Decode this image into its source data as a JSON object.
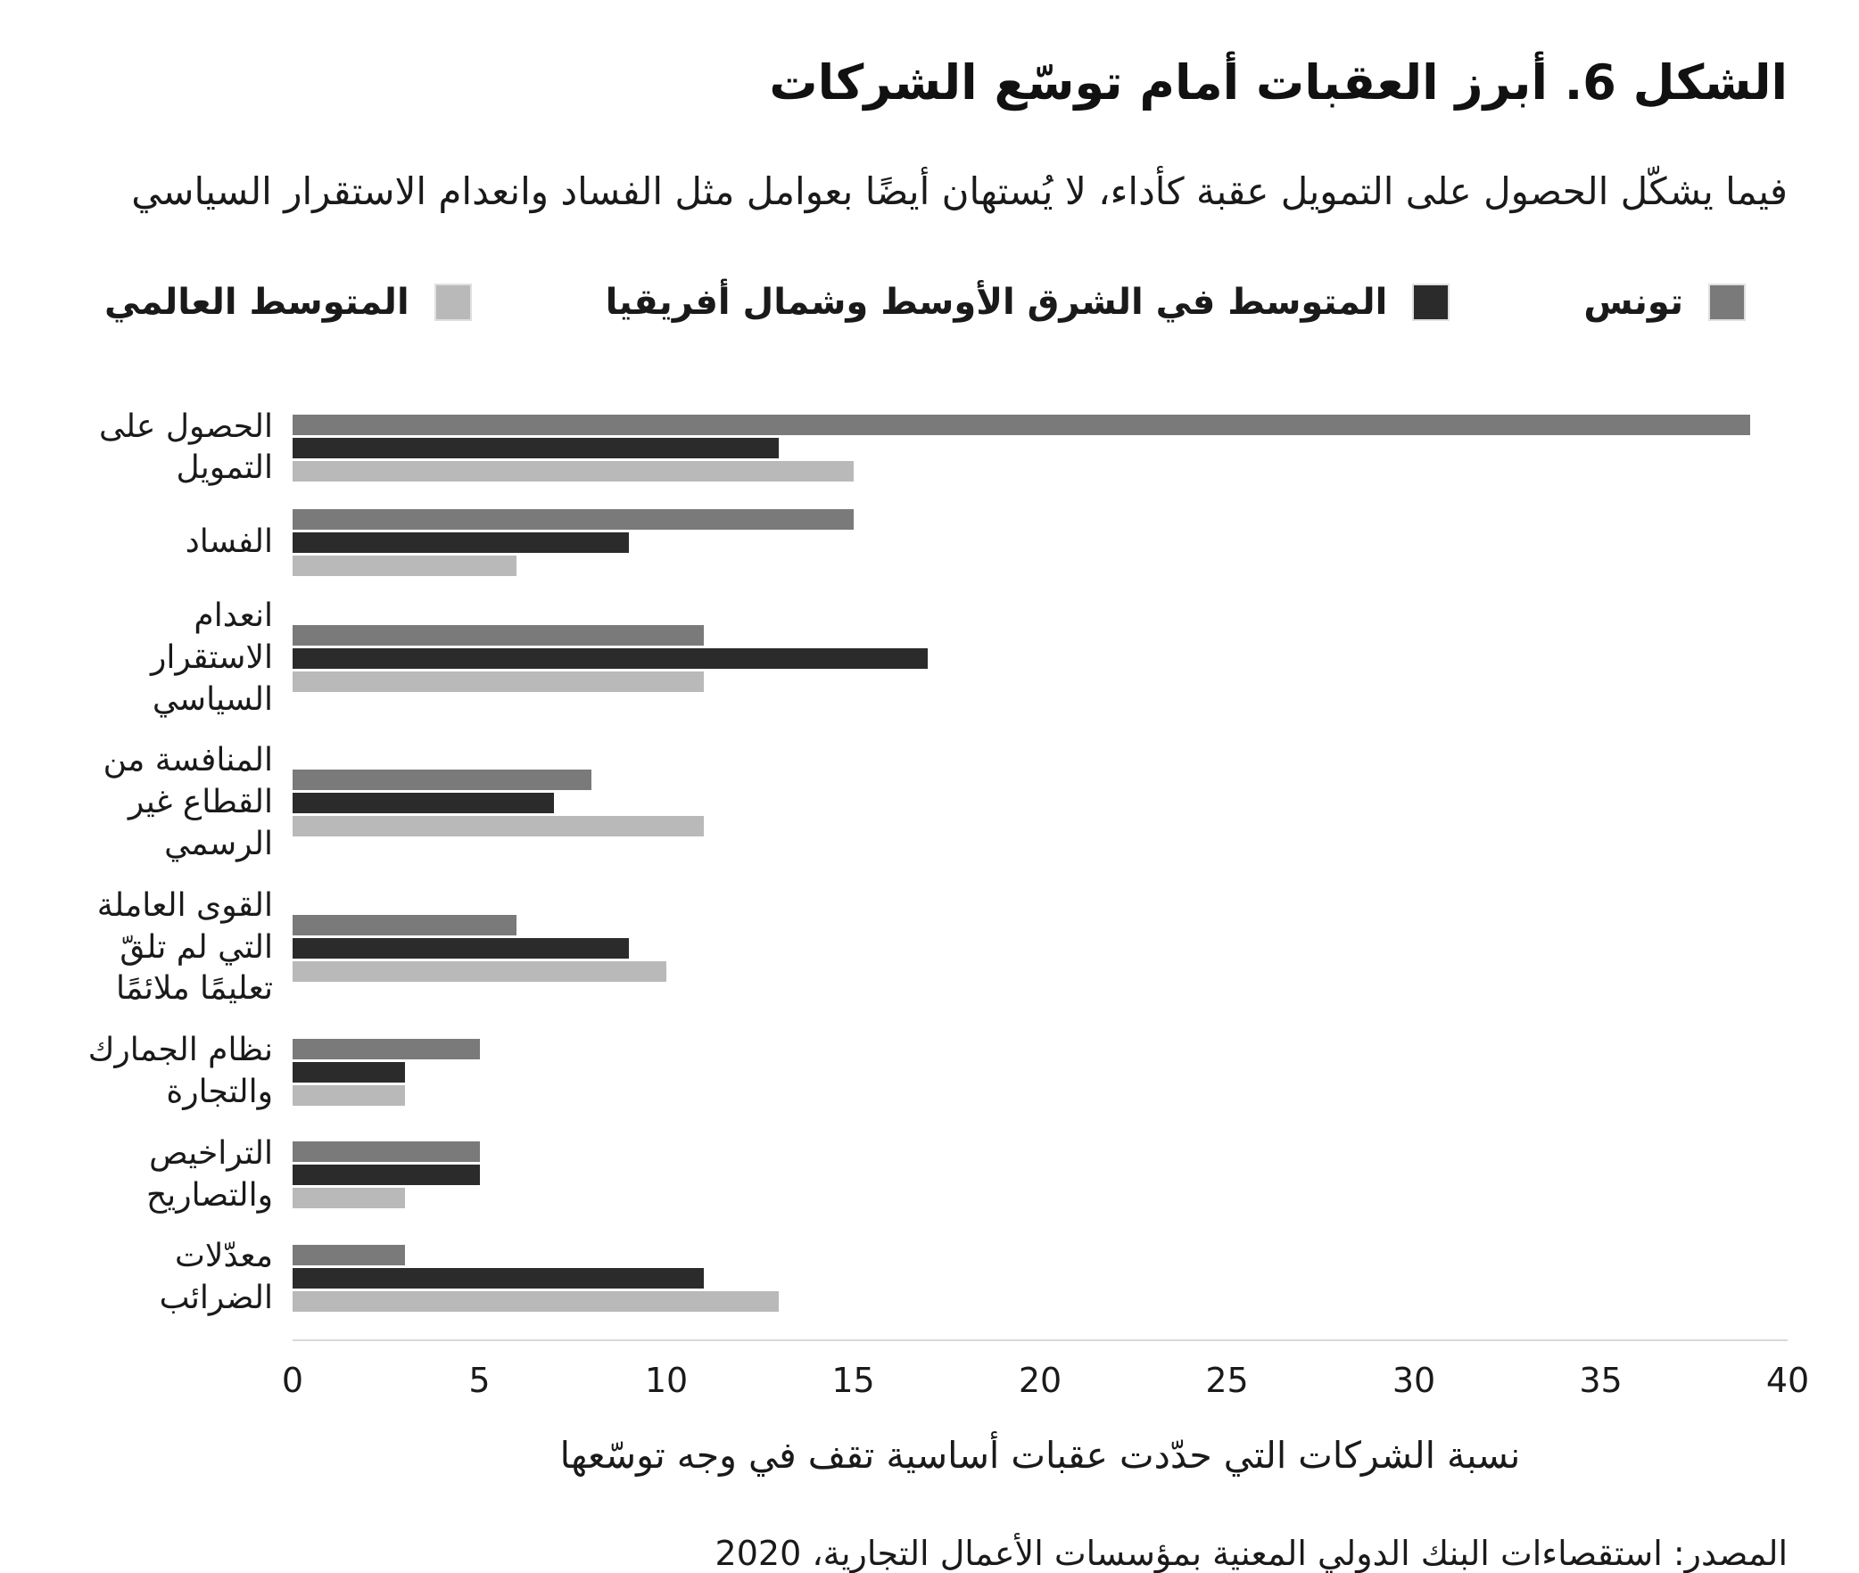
{
  "title": "الشكل 6. أبرز العقبات أمام توسّع الشركات",
  "subtitle": "فيما يشكّل الحصول على التمويل عقبة كأداء، لا يُستهان أيضًا بعوامل مثل الفساد وانعدام الاستقرار السياسي",
  "legend": [
    {
      "id": "tunisia",
      "label": "تونس",
      "color": "#7a7a7a"
    },
    {
      "id": "mena-average",
      "label": "المتوسط في الشرق الأوسط وشمال أفريقيا",
      "color": "#2b2b2b"
    },
    {
      "id": "world-average",
      "label": "المتوسط العالمي",
      "color": "#b9b9b9"
    }
  ],
  "chart_data": {
    "type": "bar",
    "orientation": "horizontal",
    "title": "الشكل 6. أبرز العقبات أمام توسّع الشركات",
    "categories": [
      "الحصول على التمويل",
      "الفساد",
      "انعدام الاستقرار السياسي",
      "المنافسة من القطاع غير الرسمي",
      "القوى العاملة التي لم تلقّ تعليمًا ملائمًا",
      "نظام الجمارك والتجارة",
      "التراخيص والتصاريح",
      "معدّلات الضرائب"
    ],
    "series": [
      {
        "id": "tunisia",
        "name": "تونس",
        "color": "#7a7a7a",
        "values": [
          39,
          15,
          11,
          8,
          6,
          5,
          5,
          3
        ]
      },
      {
        "id": "mena-average",
        "name": "المتوسط في الشرق الأوسط وشمال أفريقيا",
        "color": "#2b2b2b",
        "values": [
          13,
          9,
          17,
          7,
          9,
          3,
          5,
          11
        ]
      },
      {
        "id": "world-average",
        "name": "المتوسط العالمي",
        "color": "#b9b9b9",
        "values": [
          15,
          6,
          11,
          11,
          10,
          3,
          3,
          13
        ]
      }
    ],
    "xlabel": "نسبة الشركات التي حدّدت عقبات أساسية تقف في وجه توسّعها",
    "ylabel": "",
    "xlim": [
      0,
      40
    ],
    "xticks": [
      0,
      5,
      10,
      15,
      20,
      25,
      30,
      35,
      40
    ],
    "grid": false,
    "legend_position": "top"
  },
  "source": "المصدر: استقصاءات البنك الدولي المعنية بمؤسسات الأعمال التجارية، 2020"
}
